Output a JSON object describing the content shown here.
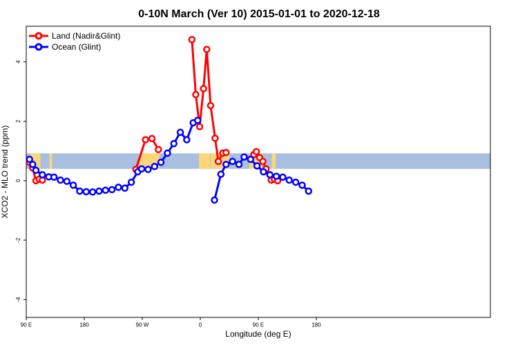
{
  "chart_data": {
    "type": "line",
    "title": "0-10N March (Ver 10)   2015-01-01 to 2020-12-18",
    "xlabel": "Longitude (deg E)",
    "ylabel": "XCO2 - MLO trend (ppm)",
    "xlim": [
      90,
      450
    ],
    "ylim": [
      -4.6,
      5.2
    ],
    "x_ticks": [
      {
        "value": 90,
        "label": "90 E"
      },
      {
        "value": 180,
        "label": "180"
      },
      {
        "value": 270,
        "label": "90 W"
      },
      {
        "value": 360,
        "label": "0"
      },
      {
        "value": 450,
        "label": "90 E"
      },
      {
        "value": 540,
        "label": "180"
      }
    ],
    "y_ticks": [
      -4,
      -2,
      0,
      2,
      4
    ],
    "grid": false,
    "legend": "top-left",
    "colors": {
      "land": "#ff0000",
      "ocean": "#0000ff",
      "band_ocean": "#a9bfdf",
      "band_land": "#fbd779"
    },
    "latitude_band": {
      "ymin": 0.4,
      "ymax": 0.92
    },
    "series": [
      {
        "name": "Land (Nadir&Glint)",
        "color": "#ff0000",
        "segments": [
          {
            "x": [
              95,
              100,
              105,
              110,
              115
            ],
            "y": [
              0.62,
              0.43,
              0.0,
              0.05,
              0.02
            ]
          },
          {
            "x": [
              260,
              275,
              285,
              295
            ],
            "y": [
              0.38,
              1.38,
              1.42,
              1.05
            ]
          },
          {
            "x": [
              347,
              353,
              359,
              365,
              370,
              376,
              383,
              388,
              395,
              400
            ],
            "y": [
              4.75,
              2.9,
              1.82,
              3.1,
              4.42,
              2.53,
              1.43,
              0.65,
              0.93,
              0.95
            ]
          },
          {
            "x": [
              443,
              447,
              452,
              457,
              462,
              470,
              475,
              480
            ],
            "y": [
              0.88,
              0.98,
              0.78,
              0.65,
              0.4,
              0.02,
              0.05,
              0.0
            ]
          }
        ]
      },
      {
        "name": "Ocean (Glint)",
        "color": "#0000ff",
        "segments": [
          {
            "x": [
              95,
              100,
              105,
              115,
              125,
              133,
              143,
              153,
              163,
              173,
              183,
              193,
              203,
              213,
              223,
              233,
              243,
              253,
              263,
              269,
              279,
              289,
              299,
              309,
              319,
              329,
              339,
              349,
              356
            ],
            "y": [
              0.72,
              0.55,
              0.35,
              0.2,
              0.13,
              0.12,
              0.02,
              -0.02,
              -0.15,
              -0.35,
              -0.37,
              -0.38,
              -0.35,
              -0.32,
              -0.3,
              -0.22,
              -0.25,
              -0.05,
              0.3,
              0.4,
              0.38,
              0.48,
              0.62,
              0.93,
              1.25,
              1.63,
              1.38,
              1.95,
              2.03
            ]
          },
          {
            "x": [
              382,
              392,
              400,
              410,
              420,
              428,
              438,
              448,
              458,
              468,
              478,
              488,
              498,
              508,
              518,
              528
            ],
            "y": [
              -0.65,
              0.22,
              0.55,
              0.65,
              0.55,
              0.8,
              0.72,
              0.5,
              0.3,
              0.2,
              0.15,
              0.12,
              0.02,
              -0.05,
              -0.15,
              -0.35
            ]
          }
        ]
      }
    ],
    "landmass_x_ranges": [
      [
        96,
        112
      ],
      [
        126,
        130
      ],
      [
        265,
        297
      ],
      [
        358,
        375
      ],
      [
        376,
        405
      ],
      [
        436,
        456
      ],
      [
        471,
        477
      ]
    ]
  }
}
